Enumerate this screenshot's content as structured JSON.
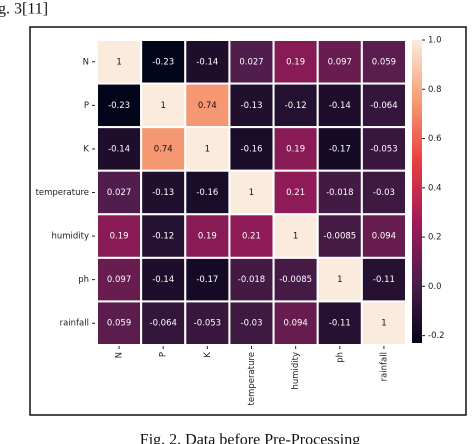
{
  "header_text": "g. 3[11]",
  "caption": "Fig. 2. Data before Pre-Processing",
  "chart_data": {
    "type": "heatmap",
    "x_categories": [
      "N",
      "P",
      "K",
      "temperature",
      "humidity",
      "ph",
      "rainfall"
    ],
    "y_categories": [
      "N",
      "P",
      "K",
      "temperature",
      "humidity",
      "ph",
      "rainfall"
    ],
    "values": [
      [
        1,
        -0.23,
        -0.14,
        0.027,
        0.19,
        0.097,
        0.059
      ],
      [
        -0.23,
        1,
        0.74,
        -0.13,
        -0.12,
        -0.14,
        -0.064
      ],
      [
        -0.14,
        0.74,
        1,
        -0.16,
        0.19,
        -0.17,
        -0.053
      ],
      [
        0.027,
        -0.13,
        -0.16,
        1,
        0.21,
        -0.018,
        -0.03
      ],
      [
        0.19,
        -0.12,
        0.19,
        0.21,
        1,
        -0.0085,
        0.094
      ],
      [
        0.097,
        -0.14,
        -0.17,
        -0.018,
        -0.0085,
        1,
        -0.11
      ],
      [
        0.059,
        -0.064,
        -0.053,
        -0.03,
        0.094,
        -0.11,
        1
      ]
    ],
    "zlim": [
      -0.23,
      1
    ],
    "zticks": [
      -0.2,
      {
        "value": 0,
        "label": "0.0"
      },
      0.2,
      0.4,
      0.6,
      0.8,
      {
        "value": 1,
        "label": "1.0"
      }
    ],
    "colors": [
      "#03051a",
      "#4c1d4b",
      "#a11a5b",
      "#e83f3f",
      "#f69c73",
      "#faebdd"
    ]
  }
}
